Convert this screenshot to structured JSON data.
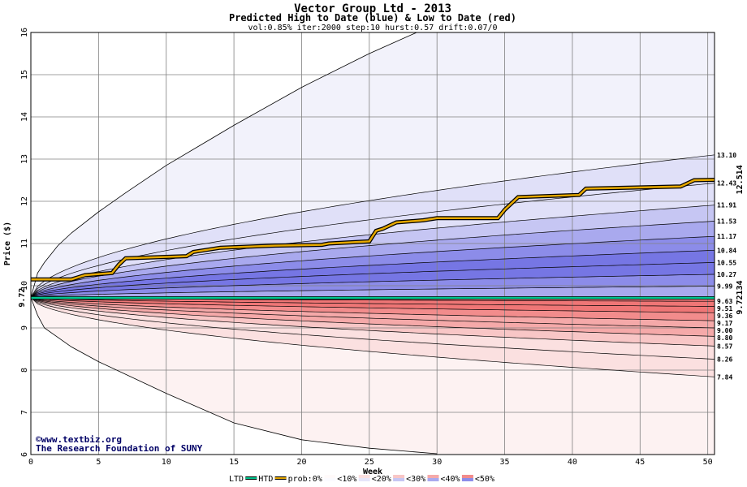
{
  "chart_data": {
    "type": "area",
    "title": "Vector Group Ltd - 2013",
    "subtitle": "Predicted High to Date (blue) &  Low to Date (red)",
    "params": "vol:0.85% iter:2000 step:10 hurst:0.57 drift:0.07/0",
    "xlabel": "Week",
    "ylabel": "Price ($)",
    "xlim": [
      0,
      50.5
    ],
    "ylim": [
      6,
      16
    ],
    "x_ticks": [
      "0",
      "5",
      "10",
      "15",
      "20",
      "25",
      "30",
      "35",
      "40",
      "45",
      "50"
    ],
    "y_ticks": [
      "6",
      "7",
      "8",
      "9",
      "10",
      "11",
      "12",
      "13",
      "14",
      "15",
      "16"
    ],
    "start_price": 9.72,
    "start_price_label": "9.72",
    "current_htd": 12.514,
    "current_htd_label": "12.514",
    "current_ltd": 9.72134,
    "current_ltd_label": "9.72134",
    "high_quantiles_end": [
      13.1,
      12.43,
      11.91,
      11.53,
      11.17,
      10.84,
      10.55,
      10.27,
      9.99
    ],
    "low_quantiles_end": [
      9.63,
      9.51,
      9.36,
      9.17,
      9.0,
      8.8,
      8.57,
      8.26,
      7.84
    ],
    "end_labels": [
      "13.10",
      "12.43",
      "11.91",
      "11.53",
      "11.17",
      "10.84",
      "10.55",
      "10.27",
      "9.99",
      "9.63",
      "9.51",
      "9.36",
      "9.17",
      "9.00",
      "8.80",
      "8.57",
      "8.26",
      "7.84"
    ],
    "outer_high": [
      [
        0,
        9.72
      ],
      [
        0.5,
        10.3
      ],
      [
        1,
        10.55
      ],
      [
        2,
        10.95
      ],
      [
        3,
        11.25
      ],
      [
        5,
        11.75
      ],
      [
        7,
        12.2
      ],
      [
        10,
        12.85
      ],
      [
        15,
        13.8
      ],
      [
        20,
        14.7
      ],
      [
        25,
        15.5
      ],
      [
        28.5,
        16
      ]
    ],
    "outer_low": [
      [
        0,
        9.72
      ],
      [
        0.5,
        9.3
      ],
      [
        1,
        9.0
      ],
      [
        3,
        8.55
      ],
      [
        5,
        8.2
      ],
      [
        10,
        7.45
      ],
      [
        15,
        6.75
      ],
      [
        20,
        6.35
      ],
      [
        25,
        6.15
      ],
      [
        30,
        6.02
      ]
    ],
    "htd_path": [
      [
        0,
        10.15
      ],
      [
        3,
        10.15
      ],
      [
        3.5,
        10.2
      ],
      [
        4,
        10.25
      ],
      [
        6,
        10.3
      ],
      [
        6.5,
        10.5
      ],
      [
        7,
        10.65
      ],
      [
        11.5,
        10.7
      ],
      [
        12,
        10.8
      ],
      [
        13,
        10.85
      ],
      [
        14,
        10.9
      ],
      [
        18,
        10.95
      ],
      [
        21.5,
        10.97
      ],
      [
        22,
        11.0
      ],
      [
        25,
        11.05
      ],
      [
        25.5,
        11.3
      ],
      [
        26,
        11.35
      ],
      [
        27,
        11.5
      ],
      [
        29,
        11.55
      ],
      [
        30,
        11.6
      ],
      [
        34.5,
        11.6
      ],
      [
        35,
        11.8
      ],
      [
        36,
        12.1
      ],
      [
        40.5,
        12.15
      ],
      [
        41,
        12.3
      ],
      [
        48,
        12.35
      ],
      [
        49,
        12.5
      ],
      [
        50.5,
        12.51
      ]
    ],
    "legend": [
      "LTD",
      "HTD",
      "prob:0%",
      "<10%",
      "<20%",
      "<30%",
      "<40%",
      "<50%"
    ],
    "band_colors": {
      "high": [
        "#f2f2fb",
        "#e0e0f8",
        "#c6c6f3",
        "#a9a9ee",
        "#8c8ce9",
        "#7676e4"
      ],
      "low": [
        "#fdf2f2",
        "#fbe0e0",
        "#f8c6c6",
        "#f5a9a9",
        "#f28c8c",
        "#ef7676"
      ],
      "htd_line": "#e6a800",
      "ltd_line": "#00c890",
      "price_label": "#006600",
      "htd_label": "#a07000"
    }
  },
  "credits": {
    "copyright": "©www.textbiz.org",
    "org": "The Research Foundation of SUNY"
  }
}
